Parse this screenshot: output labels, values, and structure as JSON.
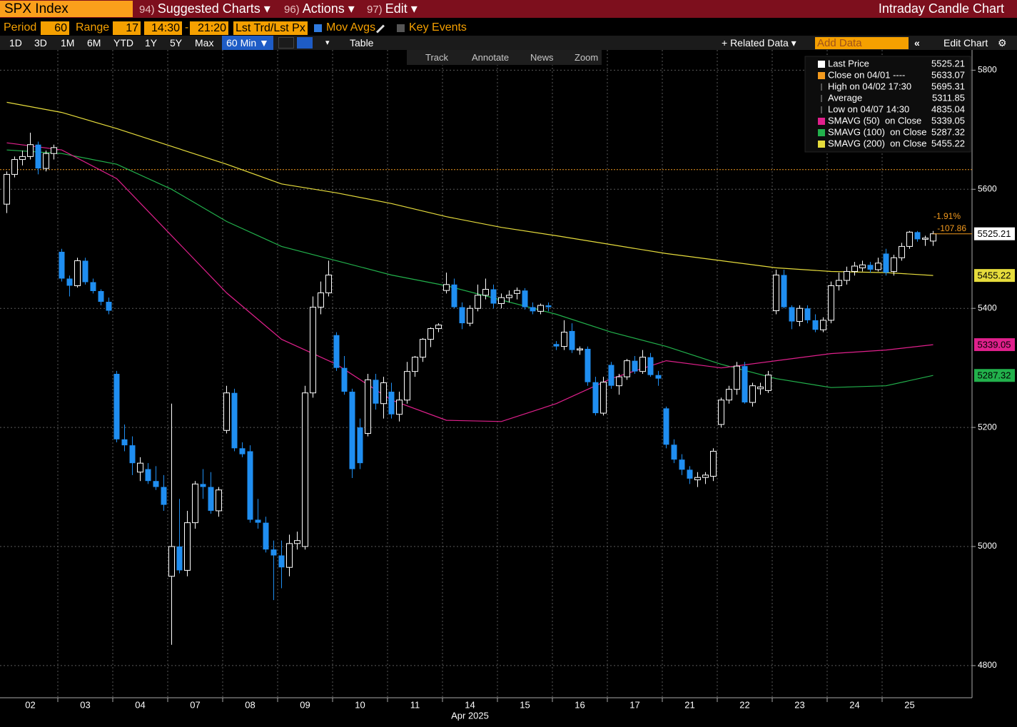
{
  "ui": {
    "ticker": "SPX Index",
    "menu": [
      {
        "num": "94)",
        "label": "Suggested Charts"
      },
      {
        "num": "96)",
        "label": "Actions"
      },
      {
        "num": "97)",
        "label": "Edit"
      }
    ],
    "window_title": "Intraday Candle Chart",
    "period_label": "Period",
    "period": "60",
    "range_label": "Range",
    "range": "17",
    "start_time": "14:30",
    "dash": "-",
    "end_time": "21:20",
    "price_field": "Lst Trd/Lst Px",
    "mov_avgs": "Mov Avgs",
    "key_events": "Key Events",
    "buttons": [
      "1D",
      "3D",
      "1M",
      "6M",
      "YTD",
      "1Y",
      "5Y",
      "Max"
    ],
    "interval": "60 Min ▼",
    "table": "Table",
    "related": "+ Related Data ▾",
    "add_data": "Add Data",
    "edit_chart": "Edit Chart",
    "tools": [
      "Track",
      "Annotate",
      "News",
      "Zoom"
    ]
  },
  "chart_data": {
    "type": "candlestick",
    "days": [
      "02",
      "03",
      "04",
      "07",
      "08",
      "09",
      "10",
      "11",
      "14",
      "15",
      "16",
      "17",
      "21",
      "22",
      "23",
      "24",
      "25"
    ],
    "month_label": "Apr 2025",
    "ylim": [
      4746,
      5834
    ],
    "yticks": [
      4800,
      5000,
      5200,
      5400,
      5600,
      5800
    ],
    "grid": true,
    "up_color": "#ffffff",
    "down_color": "#1f8ef1",
    "candles": [
      [
        5575,
        5630,
        5560,
        5625
      ],
      [
        5625,
        5655,
        5620,
        5650
      ],
      [
        5650,
        5665,
        5640,
        5655
      ],
      [
        5655,
        5695,
        5650,
        5675
      ],
      [
        5675,
        5680,
        5625,
        5635
      ],
      [
        5635,
        5665,
        5630,
        5660
      ],
      [
        5660,
        5675,
        5650,
        5670
      ],
      [
        5495,
        5500,
        5445,
        5450
      ],
      [
        5450,
        5455,
        5420,
        5438
      ],
      [
        5438,
        5485,
        5435,
        5480
      ],
      [
        5480,
        5485,
        5440,
        5444
      ],
      [
        5444,
        5450,
        5425,
        5429
      ],
      [
        5429,
        5432,
        5405,
        5411
      ],
      [
        5411,
        5418,
        5390,
        5396
      ],
      [
        5290,
        5295,
        5175,
        5180
      ],
      [
        5180,
        5205,
        5160,
        5170
      ],
      [
        5170,
        5185,
        5120,
        5140
      ],
      [
        5125,
        5150,
        5110,
        5140
      ],
      [
        5130,
        5140,
        5105,
        5110
      ],
      [
        5110,
        5135,
        5095,
        5100
      ],
      [
        5100,
        5120,
        5060,
        5070
      ],
      [
        4950,
        5240,
        4835,
        5000
      ],
      [
        5000,
        5080,
        4955,
        4960
      ],
      [
        4960,
        5060,
        4950,
        5040
      ],
      [
        5040,
        5110,
        5030,
        5105
      ],
      [
        5105,
        5130,
        5080,
        5100
      ],
      [
        5100,
        5125,
        5055,
        5060
      ],
      [
        5060,
        5100,
        5050,
        5095
      ],
      [
        5195,
        5270,
        5190,
        5258
      ],
      [
        5258,
        5265,
        5160,
        5165
      ],
      [
        5165,
        5175,
        5150,
        5155
      ],
      [
        5160,
        5170,
        5040,
        5045
      ],
      [
        5045,
        5080,
        5030,
        5040
      ],
      [
        5040,
        5050,
        4990,
        4995
      ],
      [
        4995,
        5010,
        4910,
        4985
      ],
      [
        4985,
        5010,
        4930,
        4965
      ],
      [
        4965,
        5020,
        4950,
        5005
      ],
      [
        5005,
        5025,
        4995,
        5010
      ],
      [
        5000,
        5270,
        4995,
        5258
      ],
      [
        5258,
        5420,
        5250,
        5402
      ],
      [
        5402,
        5445,
        5390,
        5426
      ],
      [
        5426,
        5480,
        5420,
        5456
      ],
      [
        5355,
        5360,
        5295,
        5300
      ],
      [
        5300,
        5320,
        5255,
        5260
      ],
      [
        5260,
        5265,
        5115,
        5130
      ],
      [
        5200,
        5215,
        5130,
        5140
      ],
      [
        5190,
        5290,
        5185,
        5280
      ],
      [
        5280,
        5290,
        5230,
        5240
      ],
      [
        5240,
        5285,
        5215,
        5275
      ],
      [
        5260,
        5275,
        5215,
        5222
      ],
      [
        5222,
        5260,
        5210,
        5246
      ],
      [
        5246,
        5310,
        5240,
        5294
      ],
      [
        5294,
        5320,
        5285,
        5318
      ],
      [
        5318,
        5350,
        5310,
        5348
      ],
      [
        5348,
        5368,
        5335,
        5366
      ],
      [
        5366,
        5375,
        5360,
        5372
      ],
      [
        5430,
        5460,
        5425,
        5440
      ],
      [
        5440,
        5450,
        5400,
        5402
      ],
      [
        5402,
        5410,
        5365,
        5375
      ],
      [
        5375,
        5405,
        5370,
        5400
      ],
      [
        5400,
        5440,
        5395,
        5422
      ],
      [
        5422,
        5450,
        5415,
        5432
      ],
      [
        5432,
        5440,
        5400,
        5408
      ],
      [
        5408,
        5425,
        5400,
        5418
      ],
      [
        5418,
        5430,
        5410,
        5422
      ],
      [
        5425,
        5435,
        5415,
        5430
      ],
      [
        5430,
        5434,
        5398,
        5402
      ],
      [
        5402,
        5410,
        5390,
        5395
      ],
      [
        5395,
        5408,
        5390,
        5405
      ],
      [
        5405,
        5410,
        5395,
        5402
      ],
      [
        5340,
        5345,
        5330,
        5336
      ],
      [
        5336,
        5380,
        5330,
        5360
      ],
      [
        5362,
        5375,
        5325,
        5330
      ],
      [
        5330,
        5336,
        5322,
        5332
      ],
      [
        5332,
        5336,
        5270,
        5276
      ],
      [
        5276,
        5285,
        5220,
        5224
      ],
      [
        5224,
        5285,
        5220,
        5276
      ],
      [
        5305,
        5310,
        5265,
        5270
      ],
      [
        5270,
        5290,
        5255,
        5285
      ],
      [
        5285,
        5315,
        5280,
        5312
      ],
      [
        5312,
        5320,
        5290,
        5294
      ],
      [
        5294,
        5330,
        5290,
        5318
      ],
      [
        5318,
        5325,
        5285,
        5288
      ],
      [
        5288,
        5295,
        5270,
        5282
      ],
      [
        5232,
        5235,
        5165,
        5171
      ],
      [
        5171,
        5180,
        5140,
        5146
      ],
      [
        5146,
        5155,
        5120,
        5129
      ],
      [
        5129,
        5135,
        5105,
        5114
      ],
      [
        5112,
        5125,
        5100,
        5116
      ],
      [
        5116,
        5125,
        5105,
        5120
      ],
      [
        5118,
        5165,
        5110,
        5160
      ],
      [
        5205,
        5250,
        5200,
        5246
      ],
      [
        5246,
        5270,
        5240,
        5264
      ],
      [
        5264,
        5310,
        5255,
        5303
      ],
      [
        5303,
        5310,
        5240,
        5242
      ],
      [
        5242,
        5275,
        5235,
        5270
      ],
      [
        5265,
        5275,
        5255,
        5268
      ],
      [
        5262,
        5295,
        5258,
        5288
      ],
      [
        5396,
        5465,
        5390,
        5456
      ],
      [
        5456,
        5465,
        5400,
        5402
      ],
      [
        5402,
        5405,
        5365,
        5378
      ],
      [
        5378,
        5405,
        5370,
        5400
      ],
      [
        5400,
        5405,
        5375,
        5380
      ],
      [
        5380,
        5390,
        5360,
        5364
      ],
      [
        5364,
        5385,
        5360,
        5380
      ],
      [
        5380,
        5445,
        5375,
        5438
      ],
      [
        5438,
        5460,
        5430,
        5447
      ],
      [
        5447,
        5470,
        5440,
        5462
      ],
      [
        5462,
        5478,
        5455,
        5471
      ],
      [
        5468,
        5480,
        5462,
        5473
      ],
      [
        5473,
        5478,
        5460,
        5465
      ],
      [
        5465,
        5485,
        5462,
        5476
      ],
      [
        5492,
        5500,
        5455,
        5460
      ],
      [
        5462,
        5490,
        5455,
        5485
      ],
      [
        5485,
        5510,
        5480,
        5504
      ],
      [
        5504,
        5530,
        5500,
        5528
      ],
      [
        5528,
        5530,
        5512,
        5516
      ],
      [
        5516,
        5522,
        5505,
        5518
      ],
      [
        5513,
        5530,
        5505,
        5525.21
      ]
    ],
    "series": [
      {
        "color": "#e6dc3c",
        "x": [
          0,
          7,
          14,
          21,
          28,
          35,
          42,
          49,
          56,
          63,
          70,
          77,
          84,
          91,
          98,
          105,
          112,
          118
        ],
        "values": [
          5746,
          5729,
          5702,
          5672,
          5642,
          5609,
          5594,
          5576,
          5554,
          5536,
          5522,
          5507,
          5492,
          5480,
          5468,
          5462,
          5460,
          5455.22
        ]
      },
      {
        "color": "#22b14c",
        "x": [
          0,
          7,
          14,
          21,
          28,
          35,
          42,
          49,
          56,
          63,
          70,
          77,
          84,
          91,
          98,
          105,
          112,
          118
        ],
        "values": [
          5666,
          5660,
          5642,
          5600,
          5546,
          5504,
          5480,
          5456,
          5438,
          5414,
          5390,
          5360,
          5336,
          5306,
          5282,
          5267,
          5270,
          5287.32
        ]
      },
      {
        "color": "#e0208c",
        "x": [
          0,
          7,
          14,
          21,
          28,
          35,
          42,
          49,
          56,
          63,
          70,
          77,
          84,
          91,
          98,
          105,
          112,
          118
        ],
        "values": [
          5678,
          5666,
          5618,
          5522,
          5426,
          5348,
          5306,
          5246,
          5212,
          5210,
          5240,
          5282,
          5312,
          5300,
          5312,
          5324,
          5330,
          5339.05
        ]
      }
    ],
    "legend": [
      {
        "label": "Last Price",
        "value": 5525.21,
        "color": "#ffffff"
      },
      {
        "label": "Close on 04/01 ----",
        "value": 5633.07,
        "color": "#f39a1e"
      },
      {
        "label": "High on 04/02 17:30",
        "value": 5695.31
      },
      {
        "label": "Average",
        "value": 5311.85
      },
      {
        "label": "Low on 04/07 14:30",
        "value": 4835.04
      },
      {
        "label": "SMAVG (50)  on Close",
        "value": 5339.05,
        "color": "#e0208c"
      },
      {
        "label": "SMAVG (100)  on Close",
        "value": 5287.32,
        "color": "#22b14c"
      },
      {
        "label": "SMAVG (200)  on Close",
        "value": 5455.22,
        "color": "#e6dc3c"
      }
    ],
    "annotations": [
      "-1.91%",
      "-107.86"
    ]
  }
}
